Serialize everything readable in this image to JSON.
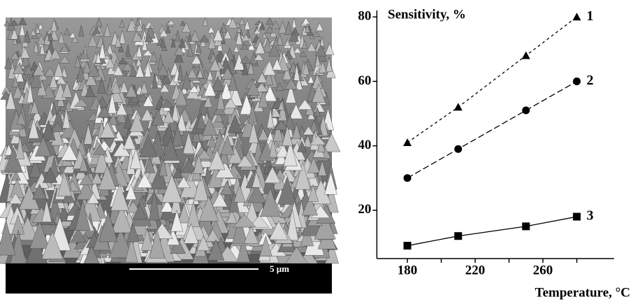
{
  "image": {
    "scale_label": "5 μm"
  },
  "chart_data": {
    "type": "line",
    "y_label": "Sensitivity, %",
    "x_label": "Temperature, °C",
    "x": [
      180,
      210,
      250,
      280
    ],
    "series": [
      {
        "name": "1",
        "color": "#000000",
        "marker": "triangle",
        "dash": "short",
        "values": [
          41,
          52,
          68,
          80
        ]
      },
      {
        "name": "2",
        "color": "#000000",
        "marker": "circle",
        "dash": "long",
        "values": [
          30,
          39,
          51,
          60
        ]
      },
      {
        "name": "3",
        "color": "#000000",
        "marker": "square",
        "dash": "solid",
        "values": [
          9,
          12,
          15,
          18
        ]
      }
    ],
    "xlim": [
      162,
      302
    ],
    "ylim": [
      5,
      82
    ],
    "xticks": [
      180,
      220,
      260
    ],
    "xminor_ticks": [
      200,
      240,
      280
    ],
    "yticks": [
      20,
      40,
      60,
      80
    ],
    "grid": false
  }
}
